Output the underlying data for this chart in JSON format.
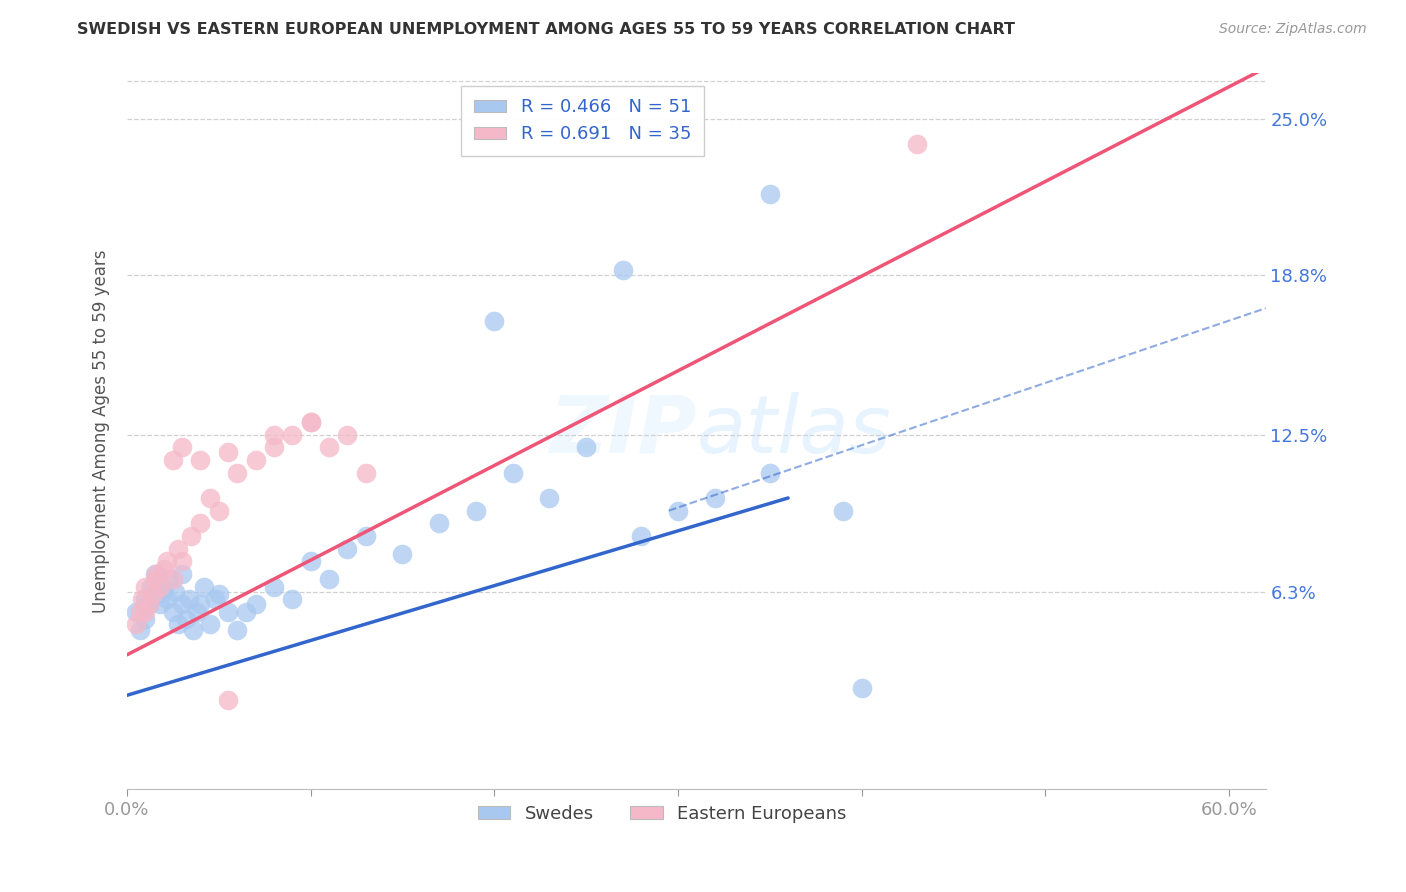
{
  "title": "SWEDISH VS EASTERN EUROPEAN UNEMPLOYMENT AMONG AGES 55 TO 59 YEARS CORRELATION CHART",
  "source": "Source: ZipAtlas.com",
  "ylabel": "Unemployment Among Ages 55 to 59 years",
  "xlim": [
    0.0,
    0.62
  ],
  "ylim": [
    -0.015,
    0.268
  ],
  "yticks_right": [
    0.063,
    0.125,
    0.188,
    0.25
  ],
  "ytick_labels_right": [
    "6.3%",
    "12.5%",
    "18.8%",
    "25.0%"
  ],
  "blue_color": "#A8C8F0",
  "pink_color": "#F5B8C8",
  "blue_line_color": "#3366CC",
  "pink_line_color": "#EE5577",
  "bg_color": "#FFFFFF",
  "grid_color": "#CCCCCC",
  "swedes_x": [
    0.005,
    0.007,
    0.01,
    0.01,
    0.012,
    0.013,
    0.015,
    0.016,
    0.018,
    0.02,
    0.022,
    0.023,
    0.025,
    0.026,
    0.028,
    0.03,
    0.03,
    0.032,
    0.034,
    0.036,
    0.038,
    0.04,
    0.042,
    0.045,
    0.048,
    0.05,
    0.055,
    0.06,
    0.065,
    0.07,
    0.08,
    0.09,
    0.1,
    0.11,
    0.12,
    0.13,
    0.15,
    0.17,
    0.19,
    0.21,
    0.23,
    0.25,
    0.28,
    0.3,
    0.32,
    0.35,
    0.39,
    0.27,
    0.2,
    0.35,
    0.4
  ],
  "swedes_y": [
    0.055,
    0.048,
    0.052,
    0.06,
    0.058,
    0.065,
    0.07,
    0.062,
    0.058,
    0.064,
    0.06,
    0.068,
    0.055,
    0.063,
    0.05,
    0.058,
    0.07,
    0.052,
    0.06,
    0.048,
    0.055,
    0.058,
    0.065,
    0.05,
    0.06,
    0.062,
    0.055,
    0.048,
    0.055,
    0.058,
    0.065,
    0.06,
    0.075,
    0.068,
    0.08,
    0.085,
    0.078,
    0.09,
    0.095,
    0.11,
    0.1,
    0.12,
    0.085,
    0.095,
    0.1,
    0.11,
    0.095,
    0.19,
    0.17,
    0.22,
    0.025
  ],
  "eastern_x": [
    0.005,
    0.007,
    0.008,
    0.01,
    0.01,
    0.012,
    0.014,
    0.015,
    0.016,
    0.018,
    0.02,
    0.022,
    0.025,
    0.028,
    0.03,
    0.035,
    0.04,
    0.045,
    0.05,
    0.06,
    0.07,
    0.08,
    0.09,
    0.1,
    0.11,
    0.12,
    0.13,
    0.025,
    0.03,
    0.04,
    0.055,
    0.08,
    0.1,
    0.43,
    0.055
  ],
  "eastern_y": [
    0.05,
    0.055,
    0.06,
    0.055,
    0.065,
    0.058,
    0.062,
    0.068,
    0.07,
    0.065,
    0.072,
    0.075,
    0.068,
    0.08,
    0.075,
    0.085,
    0.09,
    0.1,
    0.095,
    0.11,
    0.115,
    0.12,
    0.125,
    0.13,
    0.12,
    0.125,
    0.11,
    0.115,
    0.12,
    0.115,
    0.118,
    0.125,
    0.13,
    0.24,
    0.02
  ],
  "blue_line_x": [
    0.0,
    0.36
  ],
  "blue_line_y": [
    0.022,
    0.1
  ],
  "pink_line_x": [
    0.0,
    0.62
  ],
  "pink_line_y": [
    0.038,
    0.27
  ],
  "dash_line_x": [
    0.295,
    0.62
  ],
  "dash_line_y": [
    0.095,
    0.175
  ]
}
